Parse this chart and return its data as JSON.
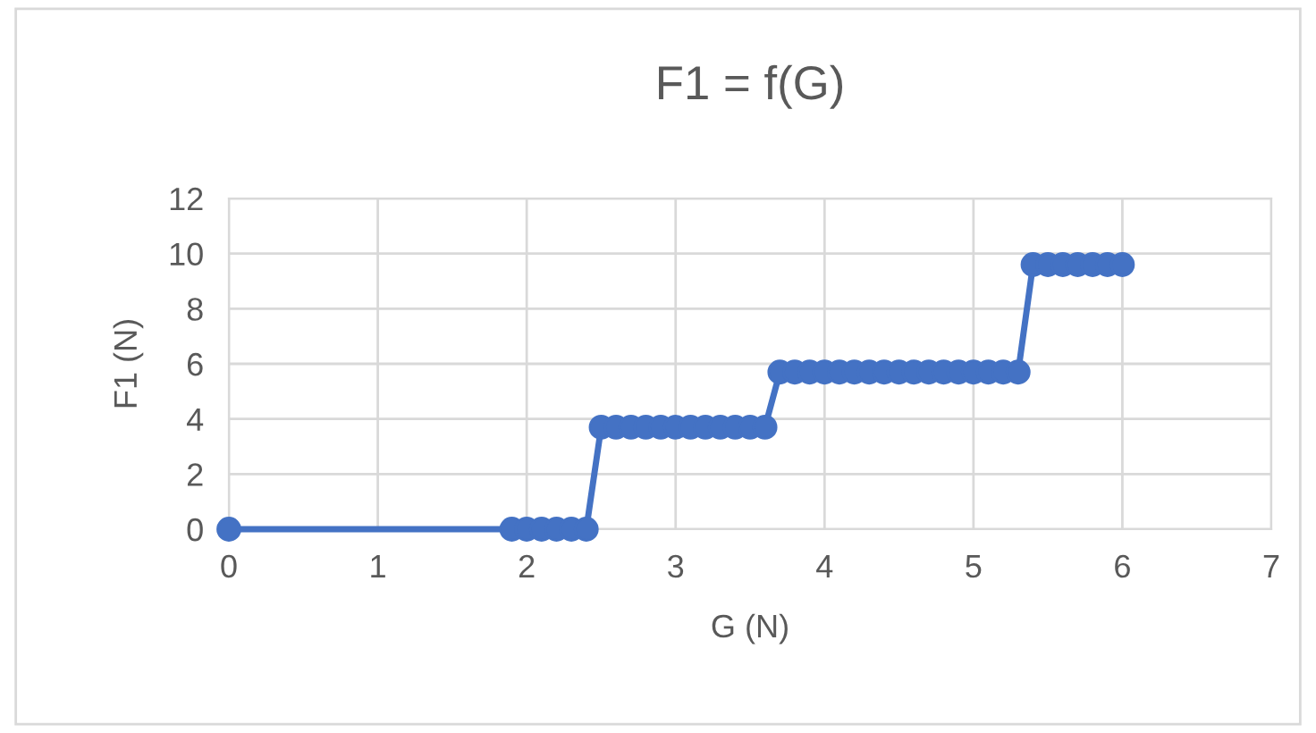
{
  "chart_data": {
    "type": "line",
    "title": "F1 = f(G)",
    "xlabel": "G (N)",
    "ylabel": "F1 (N)",
    "x": [
      0,
      1.9,
      2.0,
      2.1,
      2.2,
      2.3,
      2.4,
      2.5,
      2.6,
      2.7,
      2.8,
      2.9,
      3.0,
      3.1,
      3.2,
      3.3,
      3.4,
      3.5,
      3.6,
      3.7,
      3.8,
      3.9,
      4.0,
      4.1,
      4.2,
      4.3,
      4.4,
      4.5,
      4.6,
      4.7,
      4.8,
      4.9,
      5.0,
      5.1,
      5.2,
      5.3,
      5.4,
      5.5,
      5.6,
      5.7,
      5.8,
      5.9,
      6.0
    ],
    "series": [
      {
        "color": "#4472c4",
        "values": [
          0,
          0,
          0,
          0,
          0,
          0,
          0,
          3.7,
          3.7,
          3.7,
          3.7,
          3.7,
          3.7,
          3.7,
          3.7,
          3.7,
          3.7,
          3.7,
          3.7,
          5.7,
          5.7,
          5.7,
          5.7,
          5.7,
          5.7,
          5.7,
          5.7,
          5.7,
          5.7,
          5.7,
          5.7,
          5.7,
          5.7,
          5.7,
          5.7,
          5.7,
          9.6,
          9.6,
          9.6,
          9.6,
          9.6,
          9.6,
          9.6
        ]
      }
    ],
    "xlim": [
      0,
      7
    ],
    "xticks": [
      0,
      1,
      2,
      3,
      4,
      5,
      6,
      7
    ],
    "ylim": [
      0,
      12
    ],
    "yticks": [
      0,
      2,
      4,
      6,
      8,
      10,
      12
    ],
    "grid": true,
    "marker": "circle",
    "line_style": "solid"
  }
}
